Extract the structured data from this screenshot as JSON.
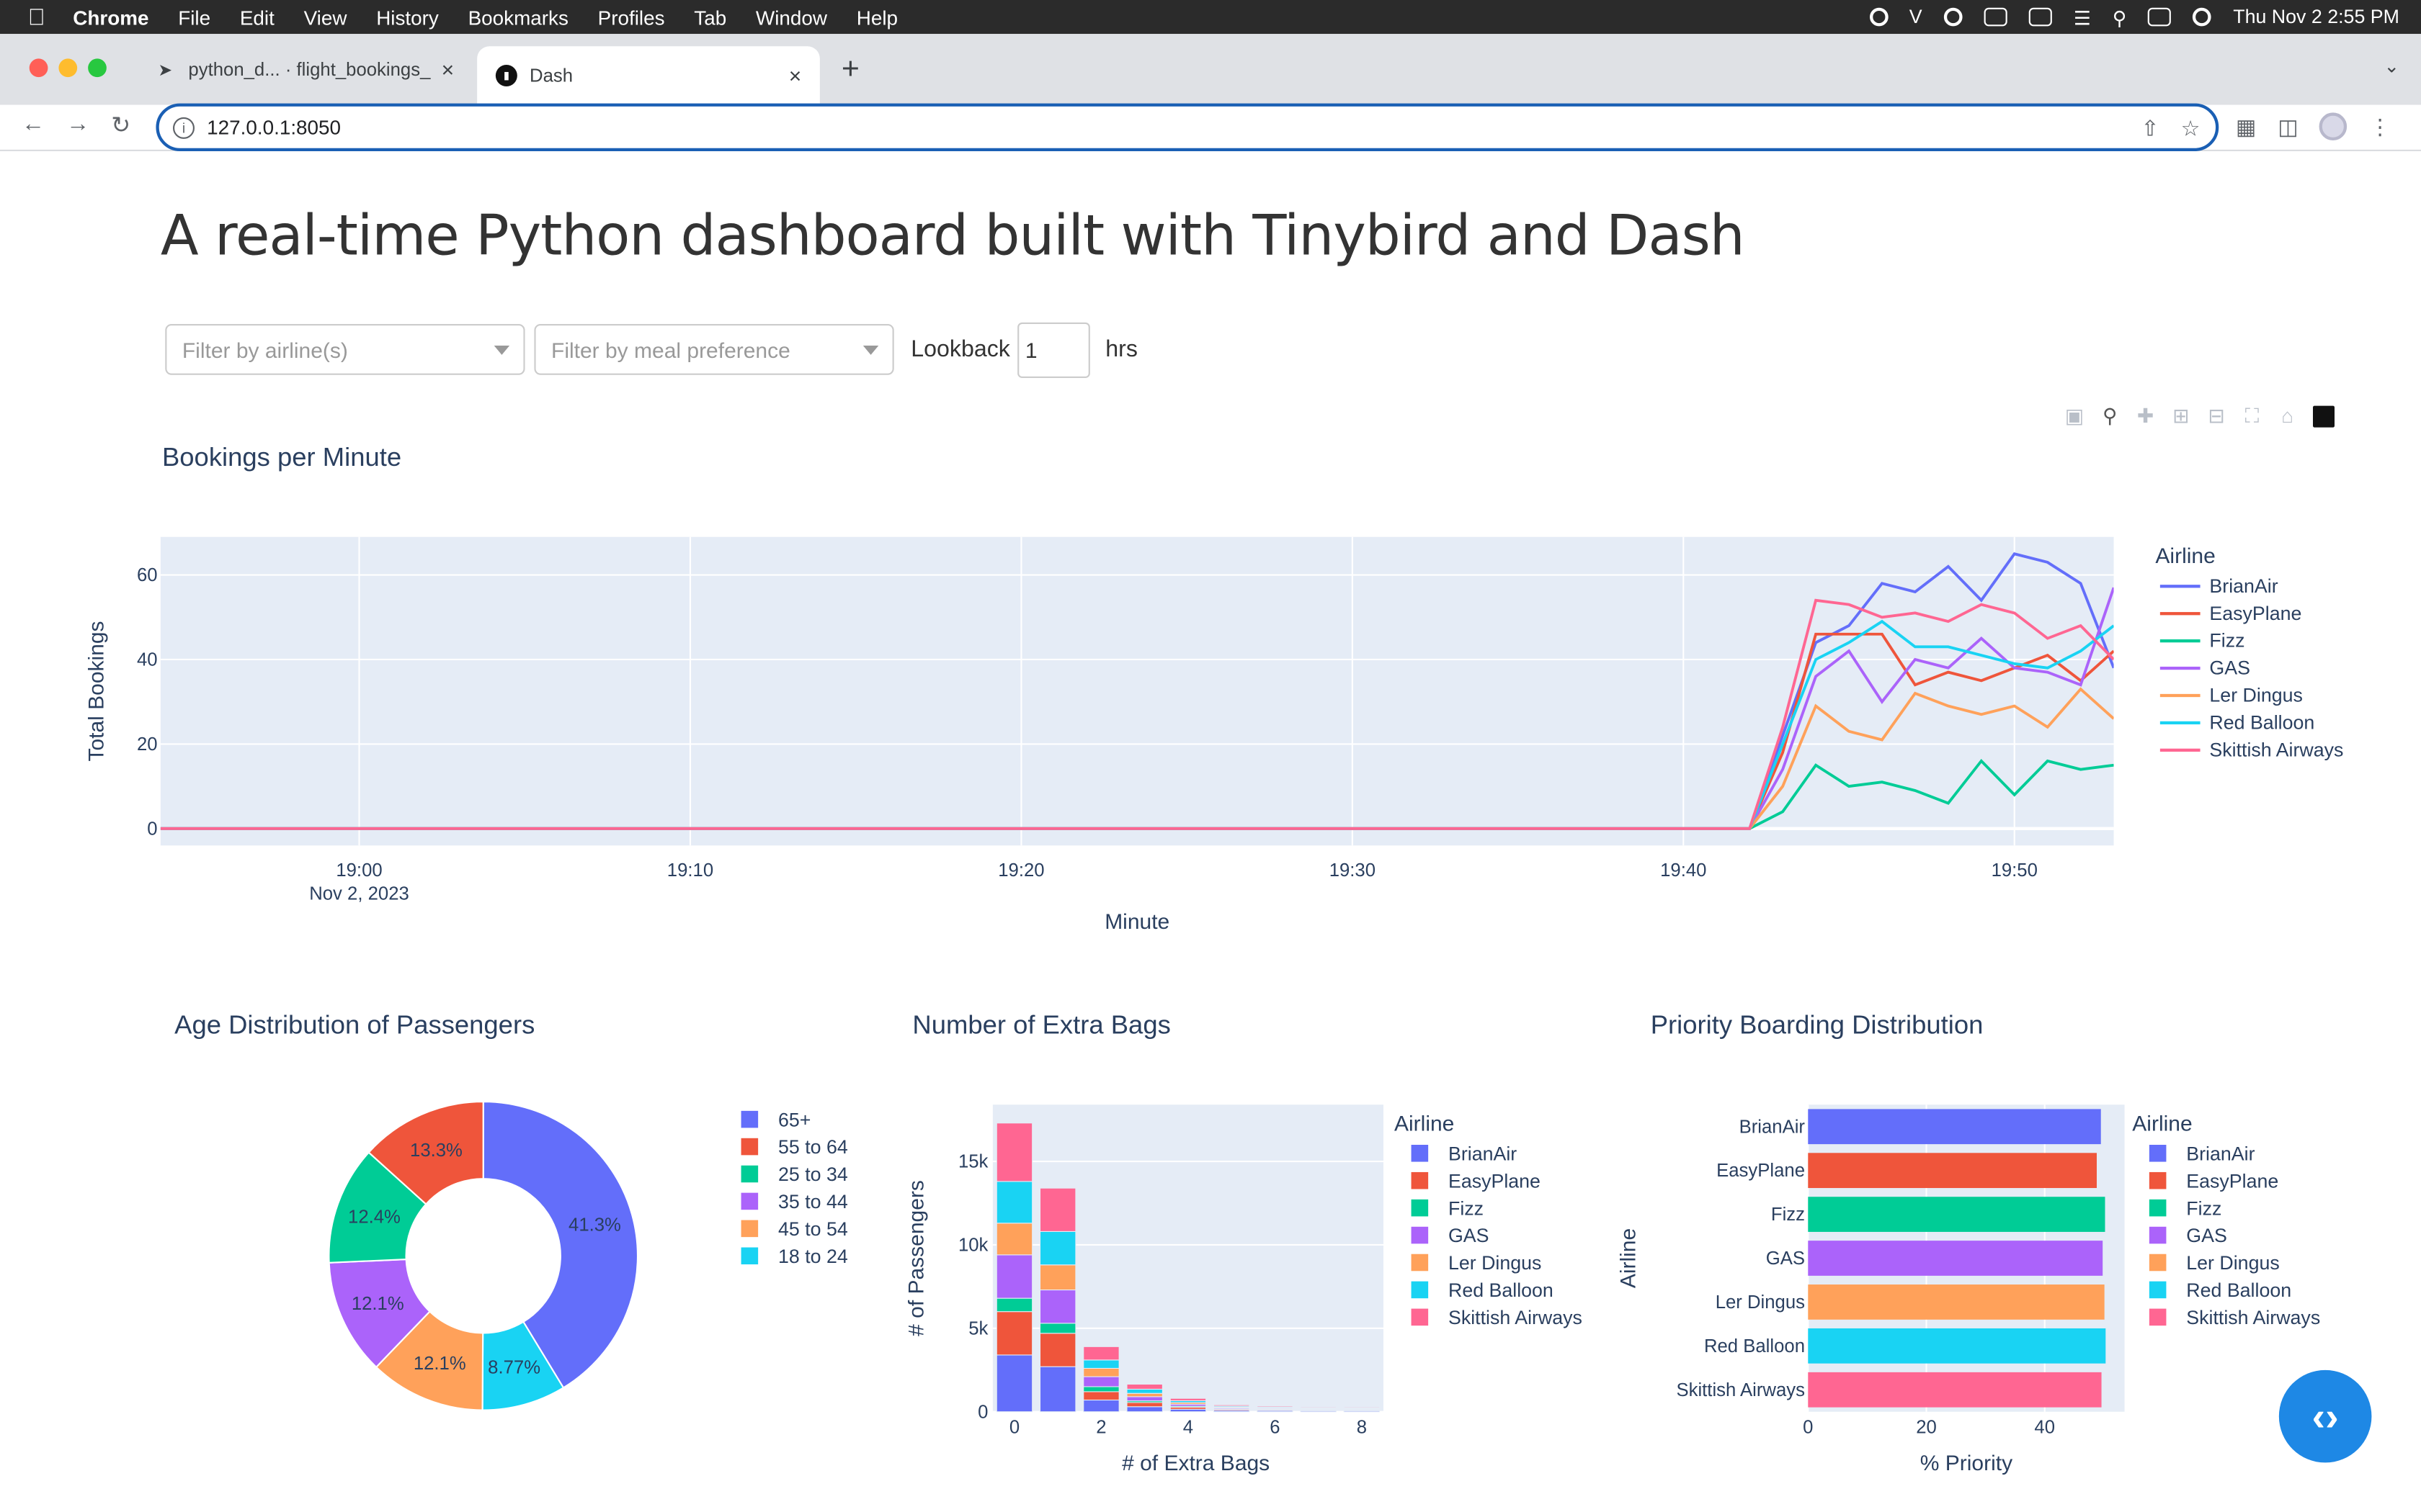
{
  "menubar": {
    "app": "Chrome",
    "items": [
      "File",
      "Edit",
      "View",
      "History",
      "Bookmarks",
      "Profiles",
      "Tab",
      "Window",
      "Help"
    ],
    "datetime": "Thu Nov 2  2:55 PM"
  },
  "browser": {
    "tabs": [
      {
        "title": "python_d... · flight_bookings_",
        "active": false
      },
      {
        "title": "Dash",
        "active": true
      }
    ],
    "url": "127.0.0.1:8050"
  },
  "page": {
    "title": "A real-time Python dashboard built with Tinybird and Dash",
    "filters": {
      "airline_placeholder": "Filter by airline(s)",
      "meal_placeholder": "Filter by meal preference",
      "lookback_label": "Lookback",
      "lookback_value": "1",
      "lookback_unit": "hrs"
    }
  },
  "colors": {
    "BrianAir": "#636efa",
    "EasyPlane": "#EF553B",
    "Fizz": "#00cc96",
    "GAS": "#ab63fa",
    "Ler Dingus": "#FFA15A",
    "Red Balloon": "#19d3f3",
    "Skittish Airways": "#FF6692"
  },
  "chart_data": [
    {
      "type": "line",
      "title": "Bookings per Minute",
      "xlabel": "Minute",
      "ylabel": "Total Bookings",
      "legend_title": "Airline",
      "legend_placement": "right",
      "x_ticks": [
        "19:00",
        "19:10",
        "19:20",
        "19:30",
        "19:40",
        "19:50"
      ],
      "x_date_label": "Nov 2, 2023",
      "x_range": [
        "18:54",
        "19:53"
      ],
      "y_ticks": [
        0,
        20,
        40,
        60
      ],
      "ylim": [
        -4,
        69
      ],
      "x": [
        "19:42",
        "19:43",
        "19:44",
        "19:45",
        "19:46",
        "19:47",
        "19:48",
        "19:49",
        "19:50",
        "19:51",
        "19:52",
        "19:53"
      ],
      "series": [
        {
          "name": "BrianAir",
          "values": [
            0,
            22,
            44,
            48,
            58,
            56,
            62,
            54,
            65,
            63,
            58,
            38
          ]
        },
        {
          "name": "EasyPlane",
          "values": [
            0,
            18,
            46,
            46,
            46,
            34,
            37,
            35,
            38,
            41,
            35,
            42
          ]
        },
        {
          "name": "Fizz",
          "values": [
            0,
            4,
            15,
            10,
            11,
            9,
            6,
            16,
            8,
            16,
            14,
            15
          ]
        },
        {
          "name": "GAS",
          "values": [
            0,
            14,
            36,
            42,
            30,
            40,
            38,
            45,
            38,
            37,
            34,
            57
          ]
        },
        {
          "name": "Ler Dingus",
          "values": [
            0,
            10,
            29,
            23,
            21,
            32,
            29,
            27,
            29,
            24,
            33,
            26
          ]
        },
        {
          "name": "Red Balloon",
          "values": [
            0,
            20,
            40,
            44,
            49,
            43,
            43,
            41,
            39,
            38,
            42,
            48
          ]
        },
        {
          "name": "Skittish Airways",
          "values": [
            0,
            24,
            54,
            53,
            50,
            51,
            49,
            53,
            51,
            45,
            48,
            40
          ]
        }
      ]
    },
    {
      "type": "pie",
      "title": "Age Distribution of Passengers",
      "labels": [
        "65+",
        "55 to 64",
        "25 to 34",
        "35 to 44",
        "45 to 54",
        "18 to 24"
      ],
      "legend_order": [
        "65+",
        "55 to 64",
        "25 to 34",
        "35 to 44",
        "45 to 54",
        "18 to 24"
      ],
      "slice_order": [
        "65+",
        "18 to 24",
        "45 to 54",
        "35 to 44",
        "25 to 34",
        "55 to 64"
      ],
      "values": {
        "65+": 41.3,
        "18 to 24": 8.77,
        "45 to 54": 12.1,
        "35 to 44": 12.1,
        "25 to 34": 12.4,
        "55 to 64": 13.3
      },
      "value_labels": {
        "65+": "41.3%",
        "18 to 24": "8.77%",
        "45 to 54": "12.1%",
        "35 to 44": "12.1%",
        "25 to 34": "12.4%",
        "55 to 64": "13.3%"
      },
      "slice_colors": {
        "65+": "#636efa",
        "55 to 64": "#EF553B",
        "25 to 34": "#00cc96",
        "35 to 44": "#ab63fa",
        "45 to 54": "#FFA15A",
        "18 to 24": "#19d3f3"
      },
      "hole": 0.5
    },
    {
      "type": "bar",
      "stacked": true,
      "title": "Number of Extra Bags",
      "xlabel": "# of Extra Bags",
      "ylabel": "# of Passengers",
      "legend_title": "Airline",
      "categories": [
        0,
        1,
        2,
        3,
        4,
        5,
        6,
        7,
        8
      ],
      "x_ticks": [
        0,
        2,
        4,
        6,
        8
      ],
      "y_ticks": [
        0,
        5000,
        10000,
        15000
      ],
      "y_tick_labels": [
        "0",
        "5k",
        "10k",
        "15k"
      ],
      "ylim": [
        0,
        18400
      ],
      "series": [
        {
          "name": "BrianAir",
          "values": [
            3400,
            2700,
            700,
            300,
            150,
            80,
            70,
            60,
            60
          ]
        },
        {
          "name": "EasyPlane",
          "values": [
            2600,
            2000,
            500,
            250,
            120,
            60,
            50,
            40,
            40
          ]
        },
        {
          "name": "Fizz",
          "values": [
            800,
            600,
            300,
            100,
            60,
            30,
            25,
            20,
            20
          ]
        },
        {
          "name": "GAS",
          "values": [
            2600,
            2000,
            600,
            250,
            120,
            60,
            50,
            40,
            40
          ]
        },
        {
          "name": "Ler Dingus",
          "values": [
            1900,
            1500,
            500,
            200,
            100,
            50,
            40,
            35,
            35
          ]
        },
        {
          "name": "Red Balloon",
          "values": [
            2500,
            2000,
            500,
            250,
            110,
            60,
            50,
            40,
            40
          ]
        },
        {
          "name": "Skittish Airways",
          "values": [
            3500,
            2600,
            800,
            300,
            140,
            70,
            60,
            50,
            50
          ]
        }
      ]
    },
    {
      "type": "bar",
      "orientation": "horizontal",
      "title": "Priority Boarding Distribution",
      "xlabel": "% Priority",
      "ylabel": "Airline",
      "legend_title": "Airline",
      "categories": [
        "BrianAir",
        "EasyPlane",
        "Fizz",
        "GAS",
        "Ler Dingus",
        "Red Balloon",
        "Skittish Airways"
      ],
      "values": [
        49.5,
        48.8,
        50.2,
        49.8,
        50.1,
        50.3,
        49.6
      ],
      "x_ticks": [
        0,
        20,
        40
      ],
      "xlim": [
        0,
        53.5
      ]
    }
  ]
}
